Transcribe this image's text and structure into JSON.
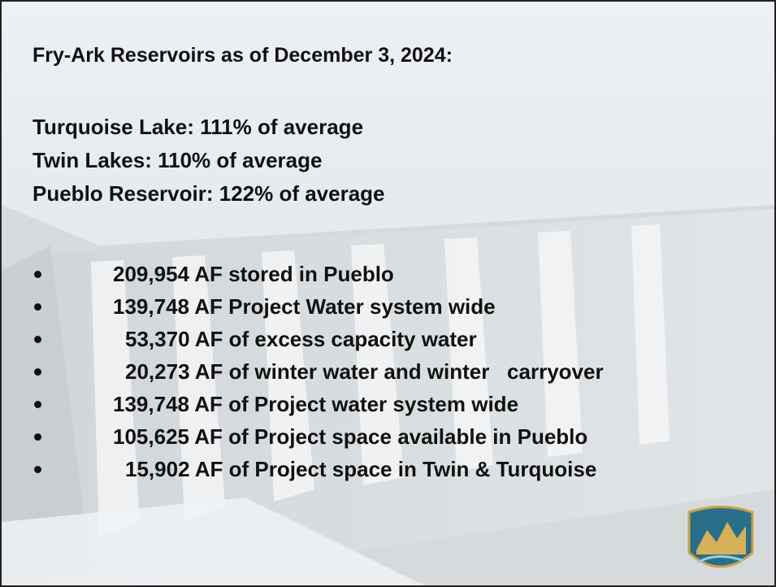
{
  "title": "Fry-Ark Reservoirs as of December 3, 2024:",
  "reservoirs": [
    "Turquoise Lake: 111% of average",
    "Twin Lakes: 110% of average",
    "Pueblo Reservoir: 122% of average"
  ],
  "facts": [
    "209,954 AF stored in Pueblo",
    "139,748 AF Project Water system wide",
    "53,370 AF of excess capacity water",
    "20,273 AF of winter water and winter   carryover",
    "139,748 AF of Project water system wide",
    "105,625 AF of Project space available in Pueblo",
    "15,902 AF of Project space in Twin & Turquoise"
  ]
}
